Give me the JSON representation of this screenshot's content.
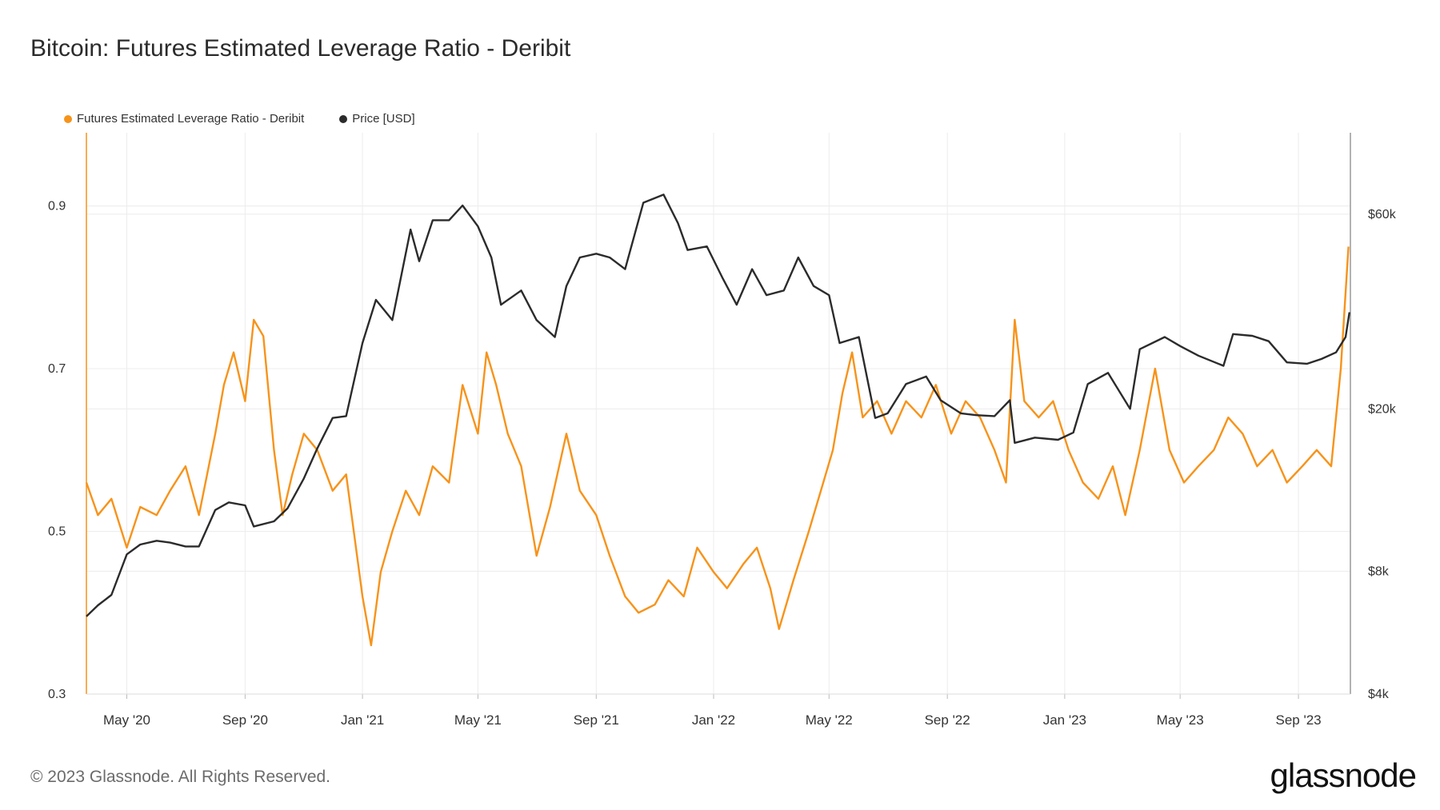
{
  "title": "Bitcoin: Futures Estimated Leverage Ratio - Deribit",
  "footer": "© 2023 Glassnode. All Rights Reserved.",
  "brand": "glassnode",
  "colors": {
    "leverage": "#f7931a",
    "price": "#2b2b2b",
    "grid": "#ececec"
  },
  "chart_data": {
    "type": "line",
    "title": "Bitcoin: Futures Estimated Leverage Ratio - Deribit",
    "legend_position": "top-left",
    "grid": true,
    "x_range": [
      "2020-03-20",
      "2023-10-25"
    ],
    "x_ticks": [
      {
        "date": "2020-05-01",
        "label": "May '20"
      },
      {
        "date": "2020-09-01",
        "label": "Sep '20"
      },
      {
        "date": "2021-01-01",
        "label": "Jan '21"
      },
      {
        "date": "2021-05-01",
        "label": "May '21"
      },
      {
        "date": "2021-09-01",
        "label": "Sep '21"
      },
      {
        "date": "2022-01-01",
        "label": "Jan '22"
      },
      {
        "date": "2022-05-01",
        "label": "May '22"
      },
      {
        "date": "2022-09-01",
        "label": "Sep '22"
      },
      {
        "date": "2023-01-01",
        "label": "Jan '23"
      },
      {
        "date": "2023-05-01",
        "label": "May '23"
      },
      {
        "date": "2023-09-01",
        "label": "Sep '23"
      }
    ],
    "y_left": {
      "range": [
        0.3,
        0.99
      ],
      "ticks": [
        {
          "value": 0.3,
          "label": "0.3"
        },
        {
          "value": 0.5,
          "label": "0.5"
        },
        {
          "value": 0.7,
          "label": "0.7"
        },
        {
          "value": 0.9,
          "label": "0.9"
        }
      ]
    },
    "y_right": {
      "scale": "log",
      "range": [
        4000,
        95000
      ],
      "ticks": [
        {
          "value": 4000,
          "label": "$4k"
        },
        {
          "value": 8000,
          "label": "$8k"
        },
        {
          "value": 20000,
          "label": "$20k"
        },
        {
          "value": 60000,
          "label": "$60k"
        }
      ]
    },
    "series": [
      {
        "name": "Futures Estimated Leverage Ratio - Deribit",
        "axis": "left",
        "points": [
          [
            "2020-03-20",
            0.56
          ],
          [
            "2020-04-01",
            0.52
          ],
          [
            "2020-04-15",
            0.54
          ],
          [
            "2020-05-01",
            0.48
          ],
          [
            "2020-05-15",
            0.53
          ],
          [
            "2020-06-01",
            0.52
          ],
          [
            "2020-06-15",
            0.55
          ],
          [
            "2020-07-01",
            0.58
          ],
          [
            "2020-07-15",
            0.52
          ],
          [
            "2020-08-01",
            0.62
          ],
          [
            "2020-08-10",
            0.68
          ],
          [
            "2020-08-20",
            0.72
          ],
          [
            "2020-09-01",
            0.66
          ],
          [
            "2020-09-10",
            0.76
          ],
          [
            "2020-09-20",
            0.74
          ],
          [
            "2020-10-01",
            0.6
          ],
          [
            "2020-10-10",
            0.52
          ],
          [
            "2020-10-20",
            0.57
          ],
          [
            "2020-11-01",
            0.62
          ],
          [
            "2020-11-15",
            0.6
          ],
          [
            "2020-12-01",
            0.55
          ],
          [
            "2020-12-15",
            0.57
          ],
          [
            "2021-01-01",
            0.42
          ],
          [
            "2021-01-10",
            0.36
          ],
          [
            "2021-01-20",
            0.45
          ],
          [
            "2021-02-01",
            0.5
          ],
          [
            "2021-02-15",
            0.55
          ],
          [
            "2021-03-01",
            0.52
          ],
          [
            "2021-03-15",
            0.58
          ],
          [
            "2021-04-01",
            0.56
          ],
          [
            "2021-04-15",
            0.68
          ],
          [
            "2021-05-01",
            0.62
          ],
          [
            "2021-05-10",
            0.72
          ],
          [
            "2021-05-20",
            0.68
          ],
          [
            "2021-06-01",
            0.62
          ],
          [
            "2021-06-15",
            0.58
          ],
          [
            "2021-07-01",
            0.47
          ],
          [
            "2021-07-15",
            0.53
          ],
          [
            "2021-08-01",
            0.62
          ],
          [
            "2021-08-15",
            0.55
          ],
          [
            "2021-09-01",
            0.52
          ],
          [
            "2021-09-15",
            0.47
          ],
          [
            "2021-10-01",
            0.42
          ],
          [
            "2021-10-15",
            0.4
          ],
          [
            "2021-11-01",
            0.41
          ],
          [
            "2021-11-15",
            0.44
          ],
          [
            "2021-12-01",
            0.42
          ],
          [
            "2021-12-15",
            0.48
          ],
          [
            "2022-01-01",
            0.45
          ],
          [
            "2022-01-15",
            0.43
          ],
          [
            "2022-02-01",
            0.46
          ],
          [
            "2022-02-15",
            0.48
          ],
          [
            "2022-03-01",
            0.43
          ],
          [
            "2022-03-10",
            0.38
          ],
          [
            "2022-03-25",
            0.44
          ],
          [
            "2022-04-10",
            0.5
          ],
          [
            "2022-04-25",
            0.56
          ],
          [
            "2022-05-05",
            0.6
          ],
          [
            "2022-05-15",
            0.67
          ],
          [
            "2022-05-25",
            0.72
          ],
          [
            "2022-06-05",
            0.64
          ],
          [
            "2022-06-20",
            0.66
          ],
          [
            "2022-07-05",
            0.62
          ],
          [
            "2022-07-20",
            0.66
          ],
          [
            "2022-08-05",
            0.64
          ],
          [
            "2022-08-20",
            0.68
          ],
          [
            "2022-09-05",
            0.62
          ],
          [
            "2022-09-20",
            0.66
          ],
          [
            "2022-10-05",
            0.64
          ],
          [
            "2022-10-20",
            0.6
          ],
          [
            "2022-11-01",
            0.56
          ],
          [
            "2022-11-10",
            0.76
          ],
          [
            "2022-11-20",
            0.66
          ],
          [
            "2022-12-05",
            0.64
          ],
          [
            "2022-12-20",
            0.66
          ],
          [
            "2023-01-05",
            0.6
          ],
          [
            "2023-01-20",
            0.56
          ],
          [
            "2023-02-05",
            0.54
          ],
          [
            "2023-02-20",
            0.58
          ],
          [
            "2023-03-05",
            0.52
          ],
          [
            "2023-03-20",
            0.6
          ],
          [
            "2023-04-05",
            0.7
          ],
          [
            "2023-04-20",
            0.6
          ],
          [
            "2023-05-05",
            0.56
          ],
          [
            "2023-05-20",
            0.58
          ],
          [
            "2023-06-05",
            0.6
          ],
          [
            "2023-06-20",
            0.64
          ],
          [
            "2023-07-05",
            0.62
          ],
          [
            "2023-07-20",
            0.58
          ],
          [
            "2023-08-05",
            0.6
          ],
          [
            "2023-08-20",
            0.56
          ],
          [
            "2023-09-05",
            0.58
          ],
          [
            "2023-09-20",
            0.6
          ],
          [
            "2023-10-05",
            0.58
          ],
          [
            "2023-10-15",
            0.7
          ],
          [
            "2023-10-23",
            0.85
          ]
        ]
      },
      {
        "name": "Price [USD]",
        "axis": "right",
        "points": [
          [
            "2020-03-20",
            6200
          ],
          [
            "2020-04-01",
            6600
          ],
          [
            "2020-04-15",
            7000
          ],
          [
            "2020-05-01",
            8800
          ],
          [
            "2020-05-15",
            9300
          ],
          [
            "2020-06-01",
            9500
          ],
          [
            "2020-06-15",
            9400
          ],
          [
            "2020-07-01",
            9200
          ],
          [
            "2020-07-15",
            9200
          ],
          [
            "2020-08-01",
            11300
          ],
          [
            "2020-08-15",
            11800
          ],
          [
            "2020-09-01",
            11600
          ],
          [
            "2020-09-10",
            10300
          ],
          [
            "2020-10-01",
            10600
          ],
          [
            "2020-10-15",
            11400
          ],
          [
            "2020-11-01",
            13500
          ],
          [
            "2020-11-15",
            16000
          ],
          [
            "2020-12-01",
            19000
          ],
          [
            "2020-12-15",
            19200
          ],
          [
            "2021-01-01",
            29000
          ],
          [
            "2021-01-15",
            37000
          ],
          [
            "2021-02-01",
            33000
          ],
          [
            "2021-02-20",
            55000
          ],
          [
            "2021-03-01",
            46000
          ],
          [
            "2021-03-15",
            58000
          ],
          [
            "2021-04-01",
            58000
          ],
          [
            "2021-04-15",
            63000
          ],
          [
            "2021-05-01",
            56000
          ],
          [
            "2021-05-15",
            47000
          ],
          [
            "2021-05-25",
            36000
          ],
          [
            "2021-06-15",
            39000
          ],
          [
            "2021-07-01",
            33000
          ],
          [
            "2021-07-20",
            30000
          ],
          [
            "2021-08-01",
            40000
          ],
          [
            "2021-08-15",
            47000
          ],
          [
            "2021-09-01",
            48000
          ],
          [
            "2021-09-15",
            47000
          ],
          [
            "2021-10-01",
            44000
          ],
          [
            "2021-10-20",
            64000
          ],
          [
            "2021-11-10",
            67000
          ],
          [
            "2021-11-25",
            57000
          ],
          [
            "2021-12-05",
            49000
          ],
          [
            "2021-12-25",
            50000
          ],
          [
            "2022-01-10",
            42000
          ],
          [
            "2022-01-25",
            36000
          ],
          [
            "2022-02-10",
            44000
          ],
          [
            "2022-02-25",
            38000
          ],
          [
            "2022-03-15",
            39000
          ],
          [
            "2022-03-30",
            47000
          ],
          [
            "2022-04-15",
            40000
          ],
          [
            "2022-05-01",
            38000
          ],
          [
            "2022-05-12",
            29000
          ],
          [
            "2022-06-01",
            30000
          ],
          [
            "2022-06-18",
            19000
          ],
          [
            "2022-07-01",
            19500
          ],
          [
            "2022-07-20",
            23000
          ],
          [
            "2022-08-10",
            24000
          ],
          [
            "2022-08-25",
            21000
          ],
          [
            "2022-09-15",
            19500
          ],
          [
            "2022-10-01",
            19300
          ],
          [
            "2022-10-20",
            19200
          ],
          [
            "2022-11-05",
            21000
          ],
          [
            "2022-11-10",
            16500
          ],
          [
            "2022-12-01",
            17000
          ],
          [
            "2022-12-25",
            16800
          ],
          [
            "2023-01-10",
            17500
          ],
          [
            "2023-01-25",
            23000
          ],
          [
            "2023-02-15",
            24500
          ],
          [
            "2023-03-10",
            20000
          ],
          [
            "2023-03-20",
            28000
          ],
          [
            "2023-04-15",
            30000
          ],
          [
            "2023-05-01",
            28500
          ],
          [
            "2023-05-20",
            27000
          ],
          [
            "2023-06-15",
            25500
          ],
          [
            "2023-06-25",
            30500
          ],
          [
            "2023-07-15",
            30200
          ],
          [
            "2023-08-01",
            29300
          ],
          [
            "2023-08-20",
            26000
          ],
          [
            "2023-09-10",
            25800
          ],
          [
            "2023-09-25",
            26500
          ],
          [
            "2023-10-10",
            27500
          ],
          [
            "2023-10-20",
            30000
          ],
          [
            "2023-10-24",
            34500
          ]
        ]
      }
    ]
  }
}
